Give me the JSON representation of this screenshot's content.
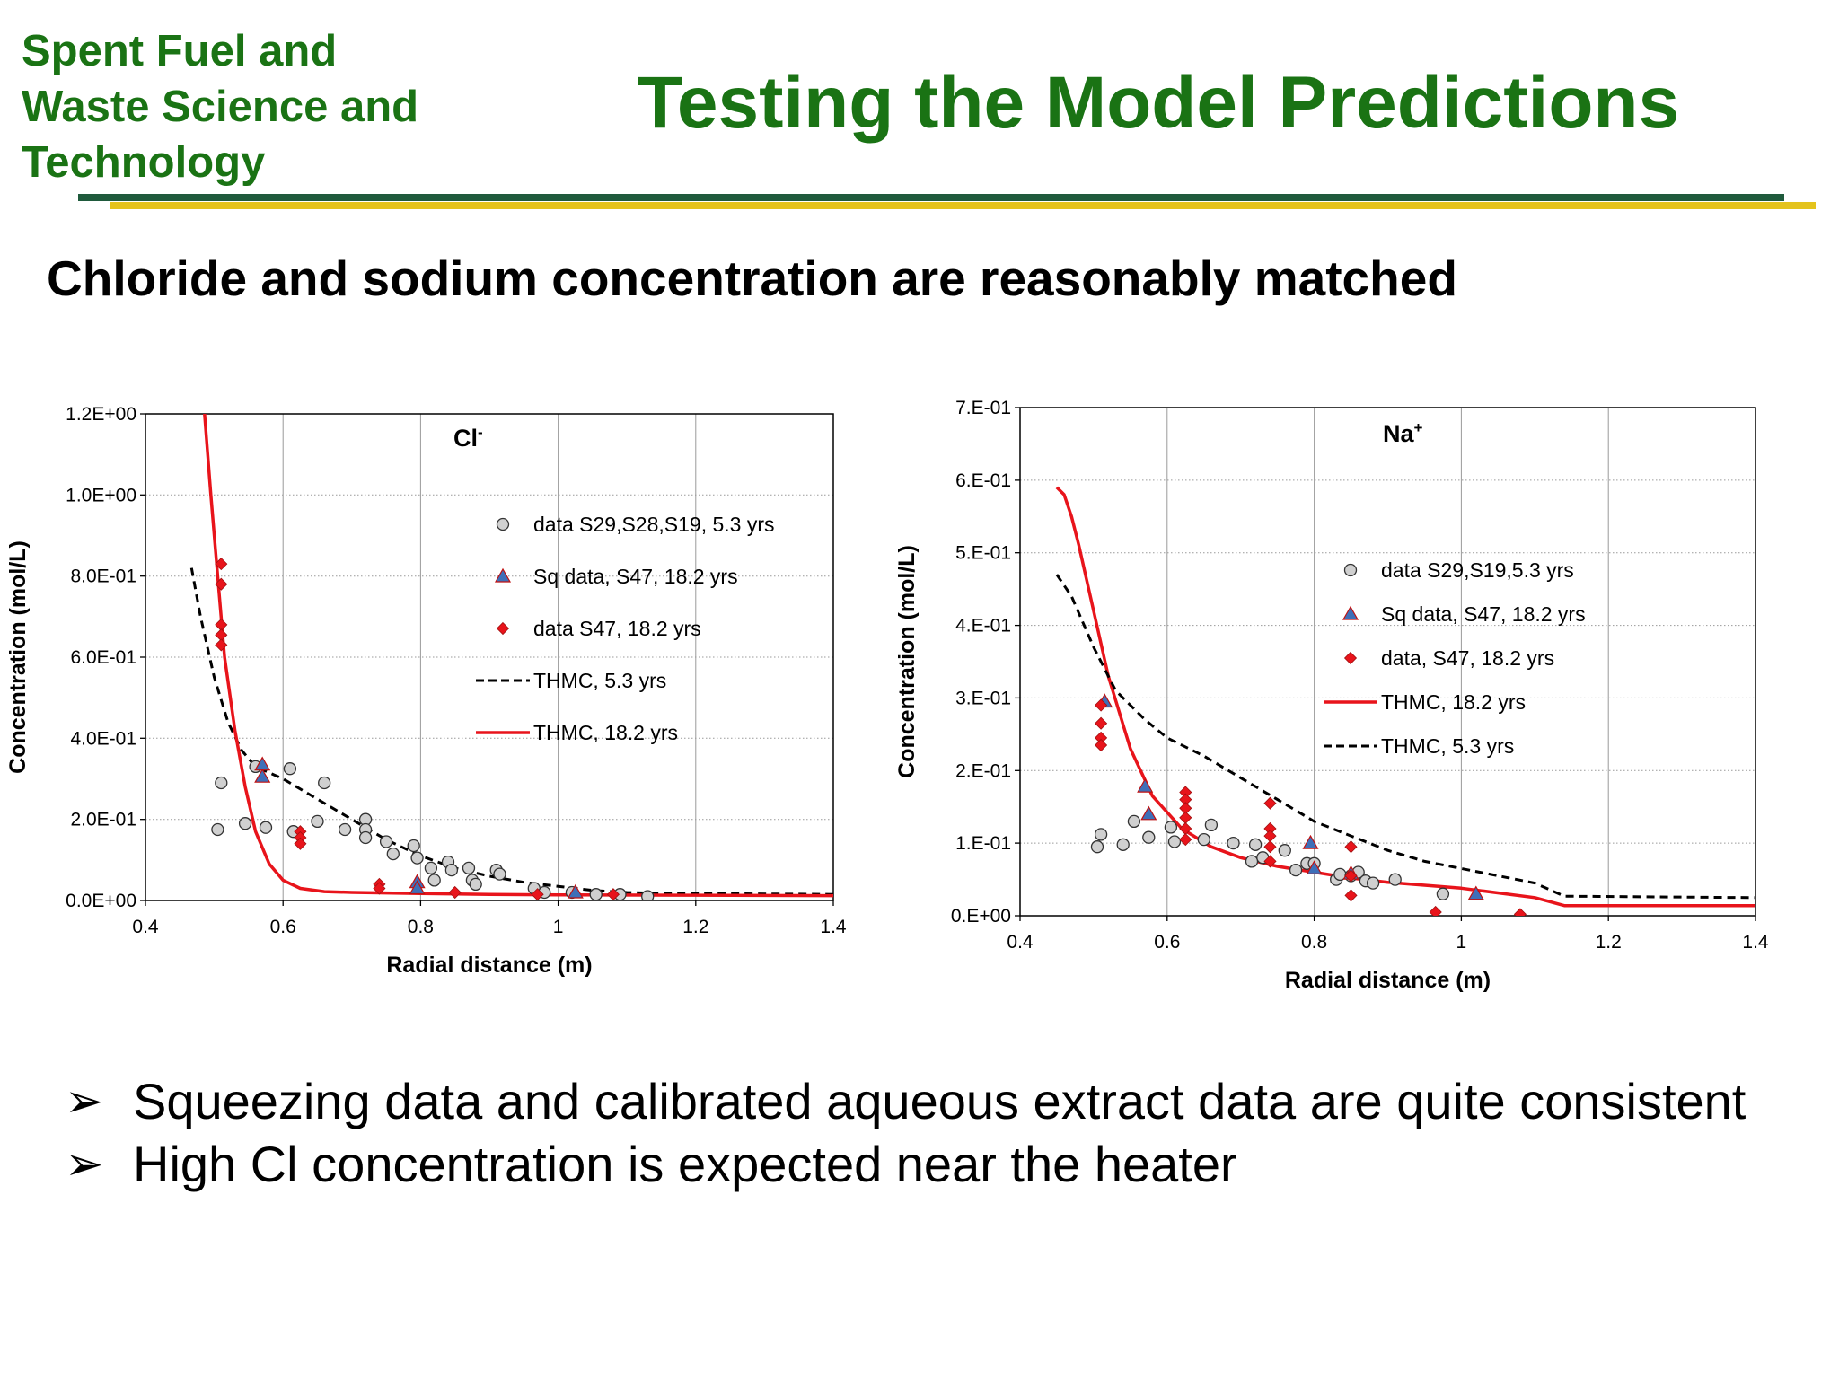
{
  "header": {
    "org_lines": [
      "Spent Fuel and",
      "Waste Science and",
      "Technology"
    ],
    "title": "Testing the Model Predictions",
    "subtitle": "Chloride and sodium concentration are reasonably matched"
  },
  "colors": {
    "brand_green": "#1a7314",
    "rule_dark": "#1f5a3c",
    "rule_yellow": "#e4c31c",
    "model_18yr": "#e8141b",
    "model_5yr": "#000000",
    "data_circle": "#d0d0d0",
    "data_triangle": "#3e6fb8",
    "data_diamond": "#e8141b"
  },
  "bullets": [
    {
      "icon": "arrow-bullet-icon",
      "text": "Squeezing data and calibrated aqueous extract data are quite consistent"
    },
    {
      "icon": "arrow-bullet-icon",
      "text": "High Cl concentration is expected near the heater"
    }
  ],
  "chart_data": [
    {
      "type": "scatter",
      "species_label": "Cl",
      "species_sup": "-",
      "xlabel": "Radial distance (m)",
      "ylabel": "Concentration (mol/L)",
      "xlim": [
        0.4,
        1.4
      ],
      "ylim": [
        0,
        1.2
      ],
      "x_ticks": [
        0.4,
        0.6,
        0.8,
        1.0,
        1.2,
        1.4
      ],
      "x_tick_labels": [
        "0.4",
        "0.6",
        "0.8",
        "1",
        "1.2",
        "1.4"
      ],
      "y_ticks": [
        0,
        0.2,
        0.4,
        0.6,
        0.8,
        1.0,
        1.2
      ],
      "y_tick_labels": [
        "0.0E+00",
        "2.0E-01",
        "4.0E-01",
        "6.0E-01",
        "8.0E-01",
        "1.0E+00",
        "1.2E+00"
      ],
      "grid": true,
      "legend_position": "top-right",
      "series": [
        {
          "name": "data S29,S28,S19, 5.3 yrs",
          "kind": "circle",
          "points": [
            [
              0.51,
              0.29
            ],
            [
              0.505,
              0.175
            ],
            [
              0.545,
              0.19
            ],
            [
              0.56,
              0.33
            ],
            [
              0.575,
              0.18
            ],
            [
              0.61,
              0.325
            ],
            [
              0.615,
              0.17
            ],
            [
              0.65,
              0.195
            ],
            [
              0.66,
              0.29
            ],
            [
              0.69,
              0.175
            ],
            [
              0.72,
              0.2
            ],
            [
              0.72,
              0.175
            ],
            [
              0.72,
              0.155
            ],
            [
              0.75,
              0.145
            ],
            [
              0.76,
              0.115
            ],
            [
              0.79,
              0.135
            ],
            [
              0.795,
              0.105
            ],
            [
              0.815,
              0.08
            ],
            [
              0.82,
              0.05
            ],
            [
              0.84,
              0.095
            ],
            [
              0.845,
              0.075
            ],
            [
              0.87,
              0.08
            ],
            [
              0.875,
              0.05
            ],
            [
              0.88,
              0.04
            ],
            [
              0.91,
              0.075
            ],
            [
              0.915,
              0.065
            ],
            [
              0.965,
              0.03
            ],
            [
              0.98,
              0.02
            ],
            [
              1.02,
              0.02
            ],
            [
              1.055,
              0.015
            ],
            [
              1.09,
              0.015
            ],
            [
              1.13,
              0.01
            ]
          ]
        },
        {
          "name": "Sq data, S47, 18.2 yrs",
          "kind": "triangle",
          "points": [
            [
              0.57,
              0.335
            ],
            [
              0.57,
              0.305
            ],
            [
              0.795,
              0.045
            ],
            [
              0.795,
              0.03
            ],
            [
              1.025,
              0.02
            ]
          ]
        },
        {
          "name": "data S47, 18.2 yrs",
          "kind": "diamond",
          "points": [
            [
              0.51,
              0.83
            ],
            [
              0.51,
              0.78
            ],
            [
              0.51,
              0.68
            ],
            [
              0.51,
              0.655
            ],
            [
              0.51,
              0.63
            ],
            [
              0.625,
              0.17
            ],
            [
              0.625,
              0.155
            ],
            [
              0.625,
              0.14
            ],
            [
              0.74,
              0.04
            ],
            [
              0.74,
              0.03
            ],
            [
              0.85,
              0.02
            ],
            [
              0.97,
              0.015
            ],
            [
              1.08,
              0.015
            ]
          ]
        },
        {
          "name": "THMC, 5.3 yrs",
          "kind": "line",
          "dash": true,
          "points": [
            [
              0.467,
              0.82
            ],
            [
              0.48,
              0.7
            ],
            [
              0.5,
              0.55
            ],
            [
              0.52,
              0.44
            ],
            [
              0.54,
              0.37
            ],
            [
              0.56,
              0.33
            ],
            [
              0.6,
              0.3
            ],
            [
              0.65,
              0.25
            ],
            [
              0.7,
              0.2
            ],
            [
              0.75,
              0.15
            ],
            [
              0.8,
              0.11
            ],
            [
              0.85,
              0.08
            ],
            [
              0.9,
              0.06
            ],
            [
              0.95,
              0.045
            ],
            [
              1.0,
              0.035
            ],
            [
              1.05,
              0.025
            ],
            [
              1.1,
              0.02
            ],
            [
              1.15,
              0.018
            ],
            [
              1.4,
              0.015
            ]
          ]
        },
        {
          "name": "THMC, 18.2 yrs",
          "kind": "line",
          "dash": false,
          "points": [
            [
              0.485,
              1.22
            ],
            [
              0.495,
              1.0
            ],
            [
              0.505,
              0.8
            ],
            [
              0.515,
              0.6
            ],
            [
              0.53,
              0.42
            ],
            [
              0.545,
              0.28
            ],
            [
              0.56,
              0.17
            ],
            [
              0.58,
              0.09
            ],
            [
              0.6,
              0.05
            ],
            [
              0.625,
              0.03
            ],
            [
              0.66,
              0.022
            ],
            [
              0.7,
              0.02
            ],
            [
              0.8,
              0.017
            ],
            [
              0.9,
              0.015
            ],
            [
              1.0,
              0.014
            ],
            [
              1.2,
              0.013
            ],
            [
              1.4,
              0.012
            ]
          ]
        }
      ]
    },
    {
      "type": "scatter",
      "species_label": "Na",
      "species_sup": "+",
      "xlabel": "Radial distance (m)",
      "ylabel": "Concentration (mol/L)",
      "xlim": [
        0.4,
        1.4
      ],
      "ylim": [
        0,
        0.7
      ],
      "x_ticks": [
        0.4,
        0.6,
        0.8,
        1.0,
        1.2,
        1.4
      ],
      "x_tick_labels": [
        "0.4",
        "0.6",
        "0.8",
        "1",
        "1.2",
        "1.4"
      ],
      "y_ticks": [
        0,
        0.1,
        0.2,
        0.3,
        0.4,
        0.5,
        0.6,
        0.7
      ],
      "y_tick_labels": [
        "0.E+00",
        "1.E-01",
        "2.E-01",
        "3.E-01",
        "4.E-01",
        "5.E-01",
        "6.E-01",
        "7.E-01"
      ],
      "grid": true,
      "legend_position": "top-right",
      "series": [
        {
          "name": "data S29,S19,5.3 yrs",
          "kind": "circle",
          "points": [
            [
              0.505,
              0.095
            ],
            [
              0.51,
              0.112
            ],
            [
              0.54,
              0.098
            ],
            [
              0.555,
              0.13
            ],
            [
              0.575,
              0.108
            ],
            [
              0.605,
              0.122
            ],
            [
              0.61,
              0.102
            ],
            [
              0.65,
              0.105
            ],
            [
              0.66,
              0.125
            ],
            [
              0.69,
              0.1
            ],
            [
              0.715,
              0.075
            ],
            [
              0.72,
              0.098
            ],
            [
              0.73,
              0.08
            ],
            [
              0.76,
              0.09
            ],
            [
              0.775,
              0.063
            ],
            [
              0.79,
              0.072
            ],
            [
              0.8,
              0.072
            ],
            [
              0.83,
              0.05
            ],
            [
              0.835,
              0.057
            ],
            [
              0.85,
              0.055
            ],
            [
              0.86,
              0.06
            ],
            [
              0.87,
              0.048
            ],
            [
              0.88,
              0.045
            ],
            [
              0.91,
              0.05
            ],
            [
              0.975,
              0.03
            ]
          ]
        },
        {
          "name": "Sq data, S47, 18.2 yrs",
          "kind": "triangle",
          "points": [
            [
              0.515,
              0.295
            ],
            [
              0.57,
              0.178
            ],
            [
              0.575,
              0.14
            ],
            [
              0.795,
              0.1
            ],
            [
              0.8,
              0.065
            ],
            [
              0.85,
              0.058
            ],
            [
              1.02,
              0.03
            ]
          ]
        },
        {
          "name": "data, S47, 18.2 yrs",
          "kind": "diamond",
          "points": [
            [
              0.51,
              0.29
            ],
            [
              0.51,
              0.265
            ],
            [
              0.51,
              0.245
            ],
            [
              0.51,
              0.235
            ],
            [
              0.625,
              0.17
            ],
            [
              0.625,
              0.16
            ],
            [
              0.625,
              0.148
            ],
            [
              0.625,
              0.135
            ],
            [
              0.625,
              0.12
            ],
            [
              0.625,
              0.105
            ],
            [
              0.74,
              0.155
            ],
            [
              0.74,
              0.12
            ],
            [
              0.74,
              0.11
            ],
            [
              0.74,
              0.095
            ],
            [
              0.74,
              0.075
            ],
            [
              0.85,
              0.095
            ],
            [
              0.85,
              0.055
            ],
            [
              0.85,
              0.028
            ],
            [
              0.965,
              0.005
            ],
            [
              1.08,
              0.002
            ]
          ]
        },
        {
          "name": "THMC, 18.2 yrs",
          "kind": "line",
          "dash": false,
          "points": [
            [
              0.45,
              0.59
            ],
            [
              0.46,
              0.58
            ],
            [
              0.47,
              0.55
            ],
            [
              0.48,
              0.51
            ],
            [
              0.5,
              0.42
            ],
            [
              0.52,
              0.33
            ],
            [
              0.55,
              0.23
            ],
            [
              0.58,
              0.165
            ],
            [
              0.62,
              0.12
            ],
            [
              0.66,
              0.095
            ],
            [
              0.7,
              0.08
            ],
            [
              0.75,
              0.068
            ],
            [
              0.8,
              0.06
            ],
            [
              0.85,
              0.052
            ],
            [
              0.9,
              0.046
            ],
            [
              1.0,
              0.038
            ],
            [
              1.1,
              0.025
            ],
            [
              1.14,
              0.014
            ],
            [
              1.4,
              0.014
            ]
          ]
        },
        {
          "name": "THMC, 5.3 yrs",
          "kind": "line",
          "dash": true,
          "points": [
            [
              0.45,
              0.47
            ],
            [
              0.47,
              0.44
            ],
            [
              0.5,
              0.37
            ],
            [
              0.53,
              0.31
            ],
            [
              0.57,
              0.27
            ],
            [
              0.6,
              0.245
            ],
            [
              0.65,
              0.22
            ],
            [
              0.7,
              0.19
            ],
            [
              0.75,
              0.16
            ],
            [
              0.8,
              0.13
            ],
            [
              0.85,
              0.11
            ],
            [
              0.9,
              0.09
            ],
            [
              0.95,
              0.075
            ],
            [
              1.0,
              0.065
            ],
            [
              1.05,
              0.055
            ],
            [
              1.1,
              0.045
            ],
            [
              1.14,
              0.027
            ],
            [
              1.4,
              0.025
            ]
          ]
        }
      ]
    }
  ]
}
